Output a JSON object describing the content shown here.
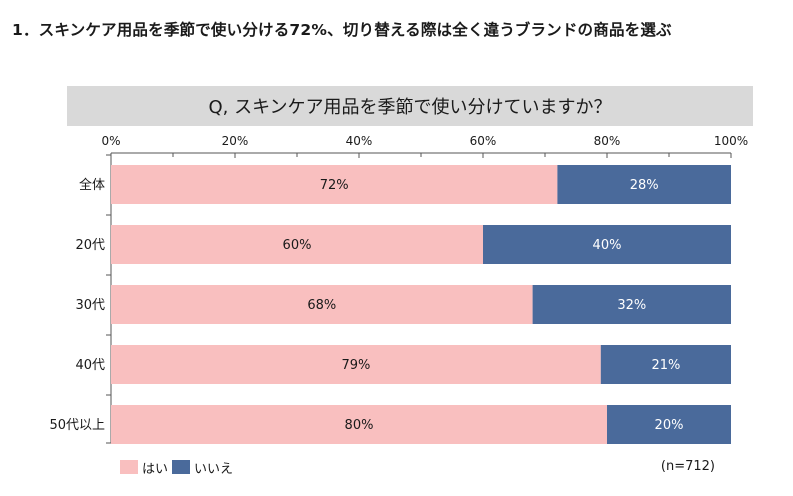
{
  "heading": "1．スキンケア用品を季節で使い分ける72%、切り替える際は全く違うブランドの商品を選ぶ",
  "question": "Q, スキンケア用品を季節で使い分けていますか？",
  "sample_note": "(n=712)",
  "colors": {
    "yes": "#f9bfbf",
    "no": "#4a6a9b",
    "question_bg": "#d9d9d9"
  },
  "legend": [
    {
      "label": "はい",
      "color": "#f9bfbf"
    },
    {
      "label": "いいえ",
      "color": "#4a6a9b"
    }
  ],
  "chart_data": {
    "type": "bar",
    "orientation": "horizontal",
    "stacked": true,
    "percent": true,
    "categories": [
      "全体",
      "20代",
      "30代",
      "40代",
      "50代以上"
    ],
    "series": [
      {
        "name": "はい",
        "values": [
          72,
          60,
          68,
          79,
          80
        ],
        "labels": [
          "72%",
          "60%",
          "68%",
          "79%",
          "80%"
        ]
      },
      {
        "name": "いいえ",
        "values": [
          28,
          40,
          32,
          21,
          20
        ],
        "labels": [
          "28%",
          "40%",
          "32%",
          "21%",
          "20%"
        ]
      }
    ],
    "xlim": [
      0,
      100
    ],
    "xticks": [
      0,
      20,
      40,
      60,
      80,
      100
    ],
    "xtick_labels": [
      "0%",
      "20%",
      "40%",
      "60%",
      "80%",
      "100%"
    ],
    "legend_position": "bottom-left",
    "grid": false
  }
}
